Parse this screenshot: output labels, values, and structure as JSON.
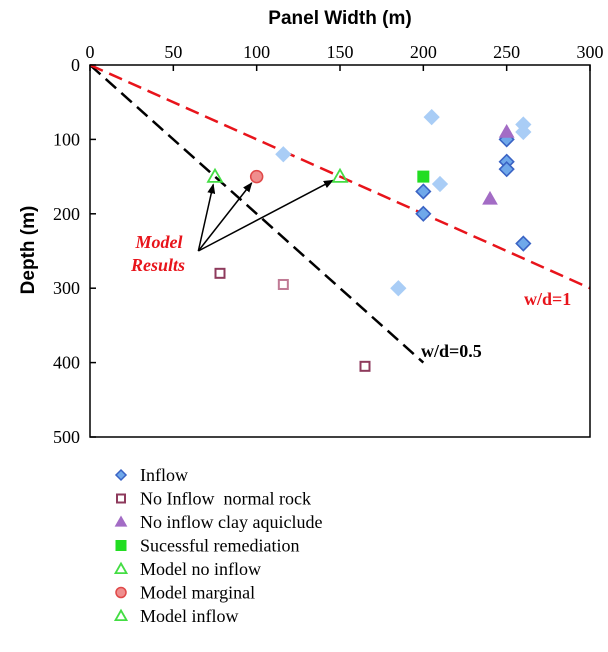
{
  "chart_data": {
    "type": "scatter",
    "xlabel": "Panel Width (m)",
    "ylabel": "Depth (m)",
    "xlim": [
      0,
      300
    ],
    "ylim": [
      0,
      500
    ],
    "y_inverted": true,
    "x_axis_position": "top",
    "grid": false,
    "x_ticks": [
      "0",
      "50",
      "100",
      "150",
      "200",
      "250",
      "300"
    ],
    "y_ticks": [
      "0",
      "100",
      "200",
      "300",
      "400",
      "500"
    ],
    "reference_lines": [
      {
        "label": "w/d=0.5",
        "color": "#000000",
        "x": [
          0,
          200
        ],
        "y": [
          0,
          400
        ]
      },
      {
        "label": "w/d=1",
        "color": "#e8141b",
        "x": [
          0,
          300
        ],
        "y": [
          0,
          300
        ]
      }
    ],
    "annotations": [
      {
        "text_lines": [
          "Model",
          "Results"
        ],
        "color": "#e8141b",
        "arrow_origin": [
          65,
          250
        ],
        "arrow_targets": [
          [
            75,
            150
          ],
          [
            100,
            150
          ],
          [
            150,
            150
          ]
        ]
      }
    ],
    "legend_position": "bottom",
    "series": [
      {
        "name": "Inflow",
        "marker": "diamond",
        "points": [
          {
            "x": 116,
            "y": 120,
            "style": "light"
          },
          {
            "x": 205,
            "y": 70,
            "style": "light"
          },
          {
            "x": 210,
            "y": 160,
            "style": "light"
          },
          {
            "x": 185,
            "y": 300,
            "style": "light"
          },
          {
            "x": 260,
            "y": 80,
            "style": "light"
          },
          {
            "x": 260,
            "y": 90,
            "style": "light"
          },
          {
            "x": 250,
            "y": 100,
            "style": "dark"
          },
          {
            "x": 250,
            "y": 130,
            "style": "dark"
          },
          {
            "x": 250,
            "y": 140,
            "style": "dark"
          },
          {
            "x": 200,
            "y": 170,
            "style": "dark"
          },
          {
            "x": 200,
            "y": 200,
            "style": "dark"
          },
          {
            "x": 260,
            "y": 240,
            "style": "dark"
          }
        ]
      },
      {
        "name": "No Inflow  normal rock",
        "marker": "open-square",
        "points": [
          {
            "x": 78,
            "y": 280,
            "style": "dark"
          },
          {
            "x": 116,
            "y": 295,
            "style": "light"
          },
          {
            "x": 165,
            "y": 405,
            "style": "dark"
          }
        ]
      },
      {
        "name": "No inflow clay aquiclude",
        "marker": "triangle",
        "points": [
          {
            "x": 250,
            "y": 90
          },
          {
            "x": 240,
            "y": 180
          }
        ]
      },
      {
        "name": "Sucessful remediation",
        "marker": "square",
        "points": [
          {
            "x": 200,
            "y": 150
          }
        ]
      },
      {
        "name": "Model no inflow",
        "marker": "open-triangle",
        "points": [
          {
            "x": 75,
            "y": 150
          }
        ]
      },
      {
        "name": "Model marginal",
        "marker": "circle",
        "points": [
          {
            "x": 100,
            "y": 150
          }
        ]
      },
      {
        "name": "Model inflow",
        "marker": "open-triangle",
        "points": [
          {
            "x": 150,
            "y": 150
          }
        ]
      }
    ]
  },
  "colors": {
    "inflow_fill": "#6fa8ea",
    "inflow_light_fill": "#a9cdf6",
    "inflow_stroke": "#3a63c4",
    "no_inflow_normal_rock": "#8e3a5c",
    "no_inflow_normal_rock_light": "#c07a95",
    "clay_aquiclude": "#a36cc5",
    "remediation": "#22dd22",
    "model_no_inflow": "#44dd44",
    "model_marginal_fill": "#ef8e8e",
    "model_marginal_stroke": "#e04848",
    "model_inflow": "#44dd44",
    "red_line": "#e8141b",
    "black_line": "#000000"
  },
  "texts": {
    "xlabel": "Panel Width (m)",
    "ylabel": "Depth (m)",
    "wd05": "w/d=0.5",
    "wd1": "w/d=1",
    "model": "Model",
    "results": "Results"
  }
}
